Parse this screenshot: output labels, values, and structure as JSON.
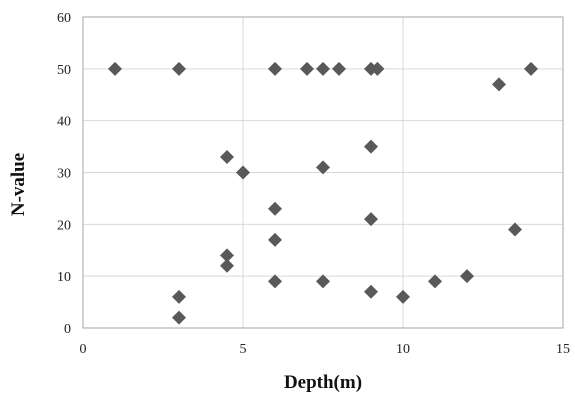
{
  "chart_data": {
    "type": "scatter",
    "xlabel": "Depth(m)",
    "ylabel": "N-value",
    "xlim": [
      0,
      15
    ],
    "ylim": [
      0,
      60
    ],
    "x_ticks": [
      0,
      5,
      10,
      15
    ],
    "y_ticks": [
      0,
      10,
      20,
      30,
      40,
      50,
      60
    ],
    "grid": true,
    "legend": "none",
    "marker": "diamond",
    "colors": {
      "marker": "#595959",
      "grid": "#d9d9d9",
      "axis": "#a6a6a6"
    },
    "series": [
      {
        "points": [
          {
            "x": 1.0,
            "y": 50
          },
          {
            "x": 3.0,
            "y": 50
          },
          {
            "x": 6.0,
            "y": 50
          },
          {
            "x": 7.0,
            "y": 50
          },
          {
            "x": 7.5,
            "y": 50
          },
          {
            "x": 8.0,
            "y": 50
          },
          {
            "x": 9.0,
            "y": 50
          },
          {
            "x": 9.2,
            "y": 50
          },
          {
            "x": 13.0,
            "y": 47
          },
          {
            "x": 14.0,
            "y": 50
          },
          {
            "x": 4.5,
            "y": 33
          },
          {
            "x": 5.0,
            "y": 30
          },
          {
            "x": 7.5,
            "y": 31
          },
          {
            "x": 9.0,
            "y": 35
          },
          {
            "x": 6.0,
            "y": 23
          },
          {
            "x": 9.0,
            "y": 21
          },
          {
            "x": 13.5,
            "y": 19
          },
          {
            "x": 6.0,
            "y": 17
          },
          {
            "x": 4.5,
            "y": 14
          },
          {
            "x": 4.5,
            "y": 12
          },
          {
            "x": 6.0,
            "y": 9
          },
          {
            "x": 7.5,
            "y": 9
          },
          {
            "x": 9.0,
            "y": 7
          },
          {
            "x": 10.0,
            "y": 6
          },
          {
            "x": 11.0,
            "y": 9
          },
          {
            "x": 12.0,
            "y": 10
          },
          {
            "x": 3.0,
            "y": 6
          },
          {
            "x": 3.0,
            "y": 2
          }
        ]
      }
    ]
  }
}
